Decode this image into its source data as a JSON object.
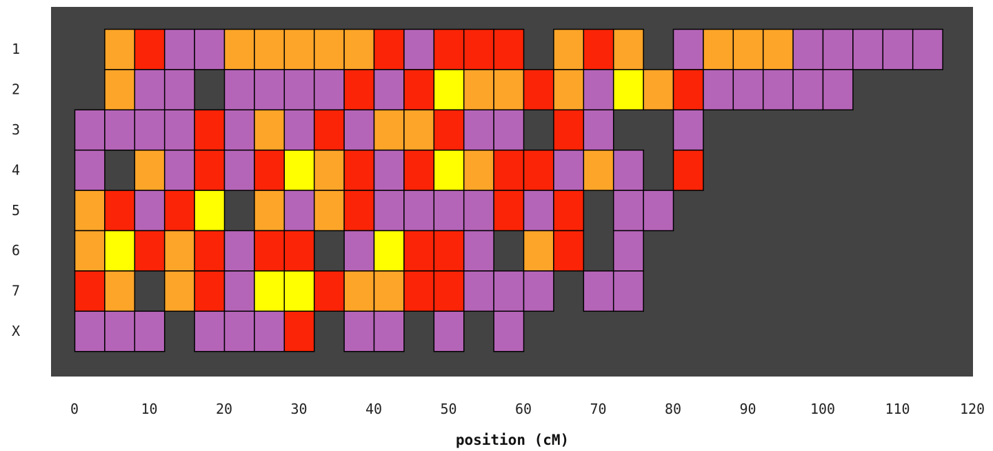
{
  "chart_data": {
    "type": "heatmap",
    "title": "",
    "xlabel": "position (cM)",
    "ylabel": "",
    "xlim": [
      0,
      120
    ],
    "bin_width_cM": 4,
    "x_ticks": [
      "0",
      "10",
      "20",
      "30",
      "40",
      "50",
      "60",
      "70",
      "80",
      "90",
      "100",
      "110",
      "120"
    ],
    "rows": [
      "1",
      "2",
      "3",
      "4",
      "5",
      "6",
      "7",
      "X"
    ],
    "level_colors": {
      "purple": "#b565b8",
      "orange": "#fda529",
      "red": "#fb2406",
      "yellow": "#ffff00"
    },
    "level_order": [
      "purple",
      "orange",
      "red",
      "yellow"
    ],
    "plot_background": "#434343",
    "cell_border": "#000000",
    "grid": false,
    "legend": "none",
    "cells": [
      {
        "row": "1",
        "start": 4,
        "level": "orange"
      },
      {
        "row": "1",
        "start": 8,
        "level": "red"
      },
      {
        "row": "1",
        "start": 12,
        "level": "purple"
      },
      {
        "row": "1",
        "start": 16,
        "level": "purple"
      },
      {
        "row": "1",
        "start": 20,
        "level": "orange"
      },
      {
        "row": "1",
        "start": 24,
        "level": "orange"
      },
      {
        "row": "1",
        "start": 28,
        "level": "orange"
      },
      {
        "row": "1",
        "start": 32,
        "level": "orange"
      },
      {
        "row": "1",
        "start": 36,
        "level": "orange"
      },
      {
        "row": "1",
        "start": 40,
        "level": "red"
      },
      {
        "row": "1",
        "start": 44,
        "level": "purple"
      },
      {
        "row": "1",
        "start": 48,
        "level": "red"
      },
      {
        "row": "1",
        "start": 52,
        "level": "red"
      },
      {
        "row": "1",
        "start": 56,
        "level": "red"
      },
      {
        "row": "1",
        "start": 64,
        "level": "orange"
      },
      {
        "row": "1",
        "start": 68,
        "level": "red"
      },
      {
        "row": "1",
        "start": 72,
        "level": "orange"
      },
      {
        "row": "1",
        "start": 80,
        "level": "purple"
      },
      {
        "row": "1",
        "start": 84,
        "level": "orange"
      },
      {
        "row": "1",
        "start": 88,
        "level": "orange"
      },
      {
        "row": "1",
        "start": 92,
        "level": "orange"
      },
      {
        "row": "1",
        "start": 96,
        "level": "purple"
      },
      {
        "row": "1",
        "start": 100,
        "level": "purple"
      },
      {
        "row": "1",
        "start": 104,
        "level": "purple"
      },
      {
        "row": "1",
        "start": 108,
        "level": "purple"
      },
      {
        "row": "1",
        "start": 112,
        "level": "purple"
      },
      {
        "row": "2",
        "start": 4,
        "level": "orange"
      },
      {
        "row": "2",
        "start": 8,
        "level": "purple"
      },
      {
        "row": "2",
        "start": 12,
        "level": "purple"
      },
      {
        "row": "2",
        "start": 20,
        "level": "purple"
      },
      {
        "row": "2",
        "start": 24,
        "level": "purple"
      },
      {
        "row": "2",
        "start": 28,
        "level": "purple"
      },
      {
        "row": "2",
        "start": 32,
        "level": "purple"
      },
      {
        "row": "2",
        "start": 36,
        "level": "red"
      },
      {
        "row": "2",
        "start": 40,
        "level": "purple"
      },
      {
        "row": "2",
        "start": 44,
        "level": "red"
      },
      {
        "row": "2",
        "start": 48,
        "level": "yellow"
      },
      {
        "row": "2",
        "start": 52,
        "level": "orange"
      },
      {
        "row": "2",
        "start": 56,
        "level": "orange"
      },
      {
        "row": "2",
        "start": 60,
        "level": "red"
      },
      {
        "row": "2",
        "start": 64,
        "level": "orange"
      },
      {
        "row": "2",
        "start": 68,
        "level": "purple"
      },
      {
        "row": "2",
        "start": 72,
        "level": "yellow"
      },
      {
        "row": "2",
        "start": 76,
        "level": "orange"
      },
      {
        "row": "2",
        "start": 80,
        "level": "red"
      },
      {
        "row": "2",
        "start": 84,
        "level": "purple"
      },
      {
        "row": "2",
        "start": 88,
        "level": "purple"
      },
      {
        "row": "2",
        "start": 92,
        "level": "purple"
      },
      {
        "row": "2",
        "start": 96,
        "level": "purple"
      },
      {
        "row": "2",
        "start": 100,
        "level": "purple"
      },
      {
        "row": "3",
        "start": 0,
        "level": "purple"
      },
      {
        "row": "3",
        "start": 4,
        "level": "purple"
      },
      {
        "row": "3",
        "start": 8,
        "level": "purple"
      },
      {
        "row": "3",
        "start": 12,
        "level": "purple"
      },
      {
        "row": "3",
        "start": 16,
        "level": "red"
      },
      {
        "row": "3",
        "start": 20,
        "level": "purple"
      },
      {
        "row": "3",
        "start": 24,
        "level": "orange"
      },
      {
        "row": "3",
        "start": 28,
        "level": "purple"
      },
      {
        "row": "3",
        "start": 32,
        "level": "red"
      },
      {
        "row": "3",
        "start": 36,
        "level": "purple"
      },
      {
        "row": "3",
        "start": 40,
        "level": "orange"
      },
      {
        "row": "3",
        "start": 44,
        "level": "orange"
      },
      {
        "row": "3",
        "start": 48,
        "level": "red"
      },
      {
        "row": "3",
        "start": 52,
        "level": "purple"
      },
      {
        "row": "3",
        "start": 56,
        "level": "purple"
      },
      {
        "row": "3",
        "start": 64,
        "level": "red"
      },
      {
        "row": "3",
        "start": 68,
        "level": "purple"
      },
      {
        "row": "3",
        "start": 80,
        "level": "purple"
      },
      {
        "row": "4",
        "start": 0,
        "level": "purple"
      },
      {
        "row": "4",
        "start": 8,
        "level": "orange"
      },
      {
        "row": "4",
        "start": 12,
        "level": "purple"
      },
      {
        "row": "4",
        "start": 16,
        "level": "red"
      },
      {
        "row": "4",
        "start": 20,
        "level": "purple"
      },
      {
        "row": "4",
        "start": 24,
        "level": "red"
      },
      {
        "row": "4",
        "start": 28,
        "level": "yellow"
      },
      {
        "row": "4",
        "start": 32,
        "level": "orange"
      },
      {
        "row": "4",
        "start": 36,
        "level": "red"
      },
      {
        "row": "4",
        "start": 40,
        "level": "purple"
      },
      {
        "row": "4",
        "start": 44,
        "level": "red"
      },
      {
        "row": "4",
        "start": 48,
        "level": "yellow"
      },
      {
        "row": "4",
        "start": 52,
        "level": "orange"
      },
      {
        "row": "4",
        "start": 56,
        "level": "red"
      },
      {
        "row": "4",
        "start": 60,
        "level": "red"
      },
      {
        "row": "4",
        "start": 64,
        "level": "purple"
      },
      {
        "row": "4",
        "start": 68,
        "level": "orange"
      },
      {
        "row": "4",
        "start": 72,
        "level": "purple"
      },
      {
        "row": "4",
        "start": 80,
        "level": "red"
      },
      {
        "row": "5",
        "start": 0,
        "level": "orange"
      },
      {
        "row": "5",
        "start": 4,
        "level": "red"
      },
      {
        "row": "5",
        "start": 8,
        "level": "purple"
      },
      {
        "row": "5",
        "start": 12,
        "level": "red"
      },
      {
        "row": "5",
        "start": 16,
        "level": "yellow"
      },
      {
        "row": "5",
        "start": 24,
        "level": "orange"
      },
      {
        "row": "5",
        "start": 28,
        "level": "purple"
      },
      {
        "row": "5",
        "start": 32,
        "level": "orange"
      },
      {
        "row": "5",
        "start": 36,
        "level": "red"
      },
      {
        "row": "5",
        "start": 40,
        "level": "purple"
      },
      {
        "row": "5",
        "start": 44,
        "level": "purple"
      },
      {
        "row": "5",
        "start": 48,
        "level": "purple"
      },
      {
        "row": "5",
        "start": 52,
        "level": "purple"
      },
      {
        "row": "5",
        "start": 56,
        "level": "red"
      },
      {
        "row": "5",
        "start": 60,
        "level": "purple"
      },
      {
        "row": "5",
        "start": 64,
        "level": "red"
      },
      {
        "row": "5",
        "start": 72,
        "level": "purple"
      },
      {
        "row": "5",
        "start": 76,
        "level": "purple"
      },
      {
        "row": "6",
        "start": 0,
        "level": "orange"
      },
      {
        "row": "6",
        "start": 4,
        "level": "yellow"
      },
      {
        "row": "6",
        "start": 8,
        "level": "red"
      },
      {
        "row": "6",
        "start": 12,
        "level": "orange"
      },
      {
        "row": "6",
        "start": 16,
        "level": "red"
      },
      {
        "row": "6",
        "start": 20,
        "level": "purple"
      },
      {
        "row": "6",
        "start": 24,
        "level": "red"
      },
      {
        "row": "6",
        "start": 28,
        "level": "red"
      },
      {
        "row": "6",
        "start": 36,
        "level": "purple"
      },
      {
        "row": "6",
        "start": 40,
        "level": "yellow"
      },
      {
        "row": "6",
        "start": 44,
        "level": "red"
      },
      {
        "row": "6",
        "start": 48,
        "level": "red"
      },
      {
        "row": "6",
        "start": 52,
        "level": "purple"
      },
      {
        "row": "6",
        "start": 60,
        "level": "orange"
      },
      {
        "row": "6",
        "start": 64,
        "level": "red"
      },
      {
        "row": "6",
        "start": 72,
        "level": "purple"
      },
      {
        "row": "7",
        "start": 0,
        "level": "red"
      },
      {
        "row": "7",
        "start": 4,
        "level": "orange"
      },
      {
        "row": "7",
        "start": 12,
        "level": "orange"
      },
      {
        "row": "7",
        "start": 16,
        "level": "red"
      },
      {
        "row": "7",
        "start": 20,
        "level": "purple"
      },
      {
        "row": "7",
        "start": 24,
        "level": "yellow"
      },
      {
        "row": "7",
        "start": 28,
        "level": "yellow"
      },
      {
        "row": "7",
        "start": 32,
        "level": "red"
      },
      {
        "row": "7",
        "start": 36,
        "level": "orange"
      },
      {
        "row": "7",
        "start": 40,
        "level": "orange"
      },
      {
        "row": "7",
        "start": 44,
        "level": "red"
      },
      {
        "row": "7",
        "start": 48,
        "level": "red"
      },
      {
        "row": "7",
        "start": 52,
        "level": "purple"
      },
      {
        "row": "7",
        "start": 56,
        "level": "purple"
      },
      {
        "row": "7",
        "start": 60,
        "level": "purple"
      },
      {
        "row": "7",
        "start": 68,
        "level": "purple"
      },
      {
        "row": "7",
        "start": 72,
        "level": "purple"
      },
      {
        "row": "X",
        "start": 0,
        "level": "purple"
      },
      {
        "row": "X",
        "start": 4,
        "level": "purple"
      },
      {
        "row": "X",
        "start": 8,
        "level": "purple"
      },
      {
        "row": "X",
        "start": 16,
        "level": "purple"
      },
      {
        "row": "X",
        "start": 20,
        "level": "purple"
      },
      {
        "row": "X",
        "start": 24,
        "level": "purple"
      },
      {
        "row": "X",
        "start": 28,
        "level": "red"
      },
      {
        "row": "X",
        "start": 36,
        "level": "purple"
      },
      {
        "row": "X",
        "start": 40,
        "level": "purple"
      },
      {
        "row": "X",
        "start": 48,
        "level": "purple"
      },
      {
        "row": "X",
        "start": 56,
        "level": "purple"
      }
    ]
  }
}
